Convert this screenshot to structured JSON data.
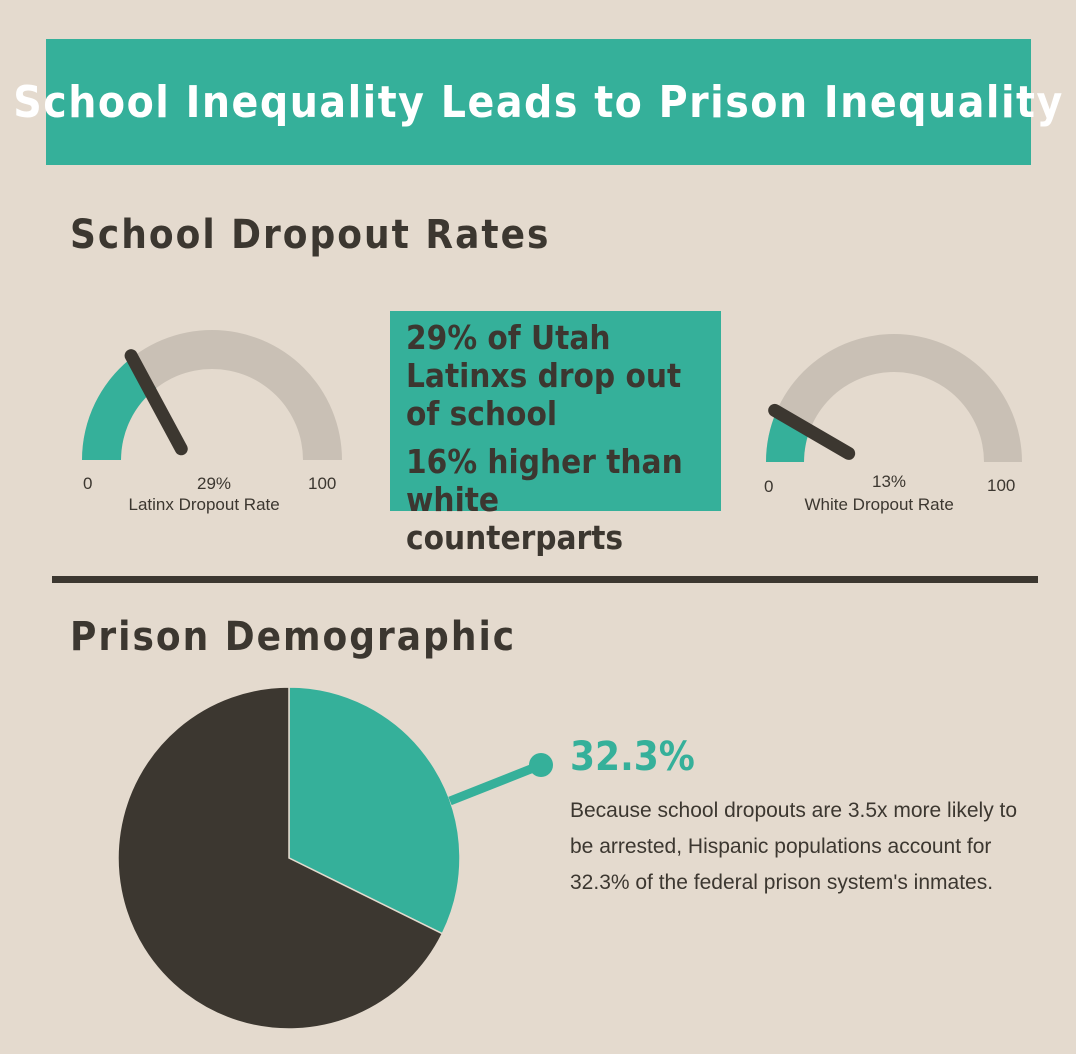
{
  "header": {
    "title": "School Inequality Leads to Prison Inequality"
  },
  "dropout_section": {
    "heading": "School Dropout Rates",
    "stat_lines": [
      "29% of Utah Latinxs drop out of school",
      "16% higher than white counterparts"
    ]
  },
  "prison_section": {
    "heading": "Prison Demographic",
    "callout_value": "32.3%",
    "description": "Because school dropouts are 3.5x more likely to be arrested, Hispanic populations account for 32.3% of the federal prison system's inmates."
  },
  "colors": {
    "accent": "#35b09a",
    "dark": "#3c3730",
    "track": "#c9c0b5",
    "background": "#e4dace"
  },
  "chart_data": [
    {
      "type": "gauge",
      "label": "Latinx Dropout Rate",
      "value": 29,
      "value_label": "29%",
      "min": 0,
      "max": 100,
      "min_label": "0",
      "max_label": "100"
    },
    {
      "type": "gauge",
      "label": "White Dropout Rate",
      "value": 13,
      "value_label": "13%",
      "min": 0,
      "max": 100,
      "min_label": "0",
      "max_label": "100"
    },
    {
      "type": "pie",
      "title": "Prison Demographic",
      "slices": [
        {
          "value": 32.3,
          "label": "32.3%",
          "color": "#35b09a"
        },
        {
          "value": 67.7,
          "color": "#3c3730"
        }
      ]
    }
  ]
}
